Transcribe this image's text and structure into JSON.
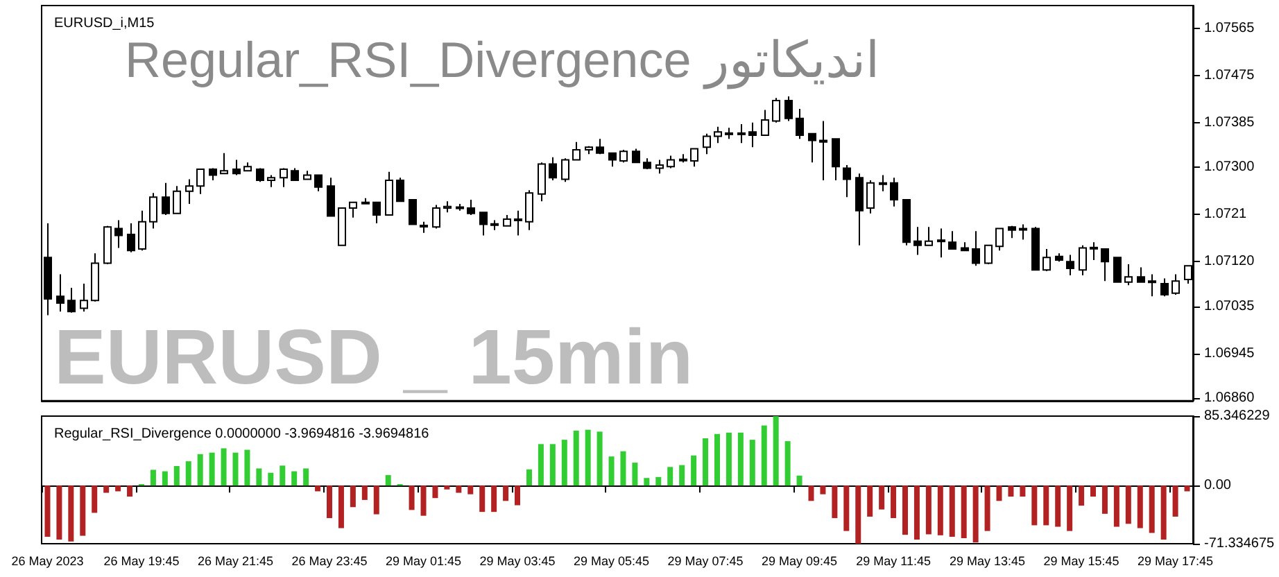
{
  "chart_data": [
    {
      "type": "candlestick",
      "title": "EURUSD_i,M15",
      "subtitle": "Regular_RSI_Divergence اندیکاتور",
      "annotations": [
        "EURUSD _ 15min"
      ],
      "color": "#000000",
      "tick_labels": "y",
      "categories": [
        null,
        null,
        null,
        null,
        null,
        null,
        null,
        null,
        null,
        null,
        null,
        null,
        null,
        null,
        null,
        null,
        null,
        null,
        null,
        null,
        null,
        null,
        null,
        null,
        null,
        null,
        null,
        null,
        null,
        null,
        null,
        null,
        null,
        null,
        null,
        null,
        null,
        null,
        null,
        null,
        null,
        null,
        null,
        null,
        null,
        null,
        null,
        null,
        null,
        null,
        null,
        null,
        null,
        null,
        null,
        null,
        null,
        null,
        null,
        null,
        null,
        null,
        null,
        null,
        null,
        null,
        null,
        null,
        null,
        null,
        null,
        null,
        null,
        null,
        null,
        null,
        null,
        null,
        null,
        null,
        null,
        null,
        null,
        null,
        null,
        null,
        null,
        null,
        null,
        null,
        null,
        null,
        null,
        null,
        null,
        null,
        null,
        null
      ],
      "ohlc": [
        [
          1.07128,
          1.07193,
          1.07018,
          1.07049
        ],
        [
          1.07054,
          1.07096,
          1.07025,
          1.07041
        ],
        [
          1.07046,
          1.0707,
          1.07023,
          1.07025
        ],
        [
          1.07031,
          1.07078,
          1.07025,
          1.07046
        ],
        [
          1.07046,
          1.07136,
          1.07044,
          1.07117
        ],
        [
          1.07117,
          1.07188,
          1.07115,
          1.07186
        ],
        [
          1.07183,
          1.07199,
          1.07146,
          1.0717
        ],
        [
          1.07172,
          1.07193,
          1.07138,
          1.07141
        ],
        [
          1.07144,
          1.07217,
          1.07141,
          1.07196
        ],
        [
          1.07196,
          1.07251,
          1.07183,
          1.07243
        ],
        [
          1.07243,
          1.0727,
          1.07209,
          1.07212
        ],
        [
          1.07212,
          1.07264,
          1.07212,
          1.07254
        ],
        [
          1.07254,
          1.07277,
          1.0723,
          1.07264
        ],
        [
          1.07264,
          1.07296,
          1.07249,
          1.07296
        ],
        [
          1.07296,
          1.07298,
          1.07275,
          1.07285
        ],
        [
          1.07288,
          1.07327,
          1.07288,
          1.07293
        ],
        [
          1.07296,
          1.07314,
          1.07285,
          1.07288
        ],
        [
          1.07293,
          1.07309,
          1.07293,
          1.07301
        ],
        [
          1.07296,
          1.07298,
          1.07272,
          1.07275
        ],
        [
          1.07275,
          1.07285,
          1.07262,
          1.0728
        ],
        [
          1.0728,
          1.07298,
          1.07262,
          1.07296
        ],
        [
          1.07293,
          1.07298,
          1.07275,
          1.07275
        ],
        [
          1.07277,
          1.07293,
          1.07277,
          1.07285
        ],
        [
          1.07285,
          1.07285,
          1.07254,
          1.07262
        ],
        [
          1.07264,
          1.0728,
          1.07207,
          1.07207
        ],
        [
          1.07151,
          1.07222,
          1.07151,
          1.07222
        ],
        [
          1.07222,
          1.07233,
          1.07204,
          1.07233
        ],
        [
          1.07231,
          1.07241,
          1.07231,
          1.07233
        ],
        [
          1.07233,
          1.07233,
          1.07193,
          1.07209
        ],
        [
          1.07209,
          1.07291,
          1.07209,
          1.07275
        ],
        [
          1.07275,
          1.0728,
          1.07235,
          1.07235
        ],
        [
          1.07238,
          1.07238,
          1.07191,
          1.07191
        ],
        [
          1.07189,
          1.07196,
          1.07175,
          1.07187
        ],
        [
          1.07186,
          1.07228,
          1.07183,
          1.07222
        ],
        [
          1.07222,
          1.07235,
          1.07214,
          1.07225
        ],
        [
          1.07222,
          1.0723,
          1.07217,
          1.07224
        ],
        [
          1.07222,
          1.07238,
          1.07209,
          1.07212
        ],
        [
          1.07214,
          1.07214,
          1.0717,
          1.07191
        ],
        [
          1.07192,
          1.07199,
          1.0718,
          1.07191
        ],
        [
          1.07188,
          1.07209,
          1.07188,
          1.07201
        ],
        [
          1.07199,
          1.07217,
          1.0717,
          1.07201
        ],
        [
          1.07196,
          1.07256,
          1.0718,
          1.07251
        ],
        [
          1.07249,
          1.07309,
          1.07235,
          1.07306
        ],
        [
          1.07306,
          1.07319,
          1.07275,
          1.0728
        ],
        [
          1.07277,
          1.07317,
          1.07272,
          1.07314
        ],
        [
          1.07314,
          1.07348,
          1.07314,
          1.07333
        ],
        [
          1.07333,
          1.0734,
          1.07325,
          1.07338
        ],
        [
          1.07338,
          1.07354,
          1.07325,
          1.07327
        ],
        [
          1.07327,
          1.07327,
          1.07301,
          1.07314
        ],
        [
          1.07312,
          1.07333,
          1.07309,
          1.0733
        ],
        [
          1.0733,
          1.07335,
          1.07309,
          1.07309
        ],
        [
          1.07309,
          1.07317,
          1.07296,
          1.07298
        ],
        [
          1.07298,
          1.07314,
          1.07288,
          1.07304
        ],
        [
          1.07301,
          1.07322,
          1.07298,
          1.07314
        ],
        [
          1.07314,
          1.07325,
          1.07309,
          1.07315
        ],
        [
          1.07312,
          1.07335,
          1.07301,
          1.07335
        ],
        [
          1.07338,
          1.07364,
          1.07325,
          1.07359
        ],
        [
          1.07359,
          1.07377,
          1.07346,
          1.07367
        ],
        [
          1.07364,
          1.07375,
          1.07354,
          1.07365
        ],
        [
          1.07364,
          1.07382,
          1.07346,
          1.07365
        ],
        [
          1.07367,
          1.07385,
          1.07338,
          1.07361
        ],
        [
          1.07361,
          1.07409,
          1.07361,
          1.0739
        ],
        [
          1.07388,
          1.07432,
          1.07385,
          1.07427
        ],
        [
          1.07427,
          1.07435,
          1.07388,
          1.07393
        ],
        [
          1.07393,
          1.07411,
          1.07354,
          1.07361
        ],
        [
          1.07364,
          1.07364,
          1.07309,
          1.07351
        ],
        [
          1.07351,
          1.07388,
          1.07275,
          1.07348
        ],
        [
          1.07354,
          1.07354,
          1.07275,
          1.07301
        ],
        [
          1.07298,
          1.07304,
          1.07243,
          1.07277
        ],
        [
          1.0728,
          1.07288,
          1.07151,
          1.07217
        ],
        [
          1.07222,
          1.07275,
          1.07212,
          1.0727
        ],
        [
          1.07268,
          1.07285,
          1.07254,
          1.0727
        ],
        [
          1.0727,
          1.0728,
          1.07225,
          1.07238
        ],
        [
          1.07238,
          1.07238,
          1.07151,
          1.07157
        ],
        [
          1.07159,
          1.07186,
          1.07133,
          1.07151
        ],
        [
          1.07151,
          1.07186,
          1.07151,
          1.07159
        ],
        [
          1.07161,
          1.07183,
          1.07128,
          1.07159
        ],
        [
          1.07157,
          1.07178,
          1.07144,
          1.07144
        ],
        [
          1.07146,
          1.07157,
          1.07141,
          1.07141
        ],
        [
          1.07144,
          1.07178,
          1.07112,
          1.07117
        ],
        [
          1.07117,
          1.07151,
          1.07115,
          1.07151
        ],
        [
          1.07149,
          1.07183,
          1.07141,
          1.07183
        ],
        [
          1.07186,
          1.07188,
          1.07165,
          1.0718
        ],
        [
          1.07183,
          1.07191,
          1.07162,
          1.07182
        ],
        [
          1.07183,
          1.07186,
          1.07104,
          1.07104
        ],
        [
          1.07104,
          1.07144,
          1.07102,
          1.07128
        ],
        [
          1.0713,
          1.07136,
          1.0712,
          1.07123
        ],
        [
          1.0712,
          1.07133,
          1.07094,
          1.07107
        ],
        [
          1.07104,
          1.07151,
          1.07094,
          1.07146
        ],
        [
          1.07146,
          1.07157,
          1.07123,
          1.07147
        ],
        [
          1.07144,
          1.07144,
          1.07083,
          1.0712
        ],
        [
          1.07128,
          1.07128,
          1.07081,
          1.07081
        ],
        [
          1.07081,
          1.07115,
          1.07075,
          1.07091
        ],
        [
          1.07091,
          1.07109,
          1.07081,
          1.07081
        ],
        [
          1.07083,
          1.07096,
          1.07054,
          1.07082
        ],
        [
          1.07078,
          1.07088,
          1.07054,
          1.07057
        ],
        [
          1.0706,
          1.07096,
          1.07057,
          1.07083
        ],
        [
          1.07086,
          1.07112,
          1.07078,
          1.07112
        ]
      ],
      "ylim": [
        1.06855,
        1.07608
      ],
      "yticks": [
        {
          "value": 1.0686,
          "label": "1.06860"
        },
        1.06945,
        1.07035,
        {
          "value": 1.0712,
          "label": "1.07120"
        },
        1.0721,
        {
          "value": 1.073,
          "label": "1.07300"
        },
        1.07385,
        1.07475,
        1.07565
      ]
    },
    {
      "type": "bar",
      "title": "Regular_RSI_Divergence 0.0000000 -3.9694816 -3.9694816",
      "categories": [
        "26 May 2023",
        null,
        null,
        null,
        null,
        null,
        null,
        null,
        "26 May 19:45",
        null,
        null,
        null,
        null,
        null,
        null,
        null,
        "26 May 21:45",
        null,
        null,
        null,
        null,
        null,
        null,
        null,
        "26 May 23:45",
        null,
        null,
        null,
        null,
        null,
        null,
        null,
        "29 May 01:45",
        null,
        null,
        null,
        null,
        null,
        null,
        null,
        "29 May 03:45",
        null,
        null,
        null,
        null,
        null,
        null,
        null,
        "29 May 05:45",
        null,
        null,
        null,
        null,
        null,
        null,
        null,
        "29 May 07:45",
        null,
        null,
        null,
        null,
        null,
        null,
        null,
        "29 May 09:45",
        null,
        null,
        null,
        null,
        null,
        null,
        null,
        "29 May 11:45",
        null,
        null,
        null,
        null,
        null,
        null,
        null,
        "29 May 13:45",
        null,
        null,
        null,
        null,
        null,
        null,
        null,
        "29 May 15:45",
        null,
        null,
        null,
        null,
        null,
        null,
        null,
        "29 May 17:45",
        null
      ],
      "values": [
        -62.8,
        -66.3,
        -68.6,
        -61.6,
        -33.4,
        -8.8,
        -7.0,
        -13.5,
        1.8,
        19.4,
        17.6,
        24.1,
        29.9,
        38.7,
        40.5,
        45.8,
        40.5,
        44.0,
        21.1,
        15.8,
        24.6,
        17.6,
        21.1,
        -7.0,
        -39.9,
        -52.2,
        -26.4,
        -17.6,
        -35.2,
        12.9,
        1.8,
        -29.9,
        -37.0,
        -15.3,
        -4.7,
        -8.8,
        -10.6,
        -32.3,
        -32.3,
        -18.8,
        -24.1,
        19.9,
        51.0,
        51.0,
        56.3,
        67.5,
        68.6,
        66.3,
        35.8,
        42.2,
        28.2,
        9.4,
        10.6,
        22.9,
        25.2,
        37.0,
        58.1,
        63.4,
        65.1,
        65.1,
        56.3,
        73.9,
        85.346229,
        54.6,
        12.3,
        -18.8,
        -10.6,
        -39.9,
        -55.7,
        -71.334675,
        -38.1,
        -29.3,
        -39.9,
        -60.4,
        -66.3,
        -59.8,
        -61.0,
        -62.8,
        -64.5,
        -69.8,
        -55.7,
        -18.8,
        -13.5,
        -13.5,
        -48.7,
        -48.7,
        -50.5,
        -55.7,
        -24.6,
        -13.5,
        -34.6,
        -50.5,
        -46.9,
        -52.2,
        -58.1,
        -66.3,
        -38.1,
        -7.0
      ],
      "colors": [
        "#b22222",
        "#b22222",
        "#b22222",
        "#b22222",
        "#b22222",
        "#b22222",
        "#b22222",
        "#b22222",
        "#32cd32",
        "#32cd32",
        "#32cd32",
        "#32cd32",
        "#32cd32",
        "#32cd32",
        "#32cd32",
        "#32cd32",
        "#32cd32",
        "#32cd32",
        "#32cd32",
        "#32cd32",
        "#32cd32",
        "#32cd32",
        "#32cd32",
        "#b22222",
        "#b22222",
        "#b22222",
        "#b22222",
        "#b22222",
        "#b22222",
        "#32cd32",
        "#32cd32",
        "#b22222",
        "#b22222",
        "#b22222",
        "#b22222",
        "#b22222",
        "#b22222",
        "#b22222",
        "#b22222",
        "#b22222",
        "#b22222",
        "#32cd32",
        "#32cd32",
        "#32cd32",
        "#32cd32",
        "#32cd32",
        "#32cd32",
        "#32cd32",
        "#32cd32",
        "#32cd32",
        "#32cd32",
        "#32cd32",
        "#32cd32",
        "#32cd32",
        "#32cd32",
        "#32cd32",
        "#32cd32",
        "#32cd32",
        "#32cd32",
        "#32cd32",
        "#32cd32",
        "#32cd32",
        "#32cd32",
        "#32cd32",
        "#32cd32",
        "#b22222",
        "#b22222",
        "#b22222",
        "#b22222",
        "#b22222",
        "#b22222",
        "#b22222",
        "#b22222",
        "#b22222",
        "#b22222",
        "#b22222",
        "#b22222",
        "#b22222",
        "#b22222",
        "#b22222",
        "#b22222",
        "#b22222",
        "#b22222",
        "#b22222",
        "#b22222",
        "#b22222",
        "#b22222",
        "#b22222",
        "#b22222",
        "#b22222",
        "#b22222",
        "#b22222",
        "#b22222",
        "#b22222",
        "#b22222",
        "#b22222",
        "#b22222",
        "#b22222"
      ],
      "ylim": [
        -71.334675,
        85.346229
      ],
      "yticks": [
        {
          "value": -71.334675,
          "label": "-71.334675"
        },
        {
          "value": 0,
          "label": "0.00"
        },
        {
          "value": 85.346229,
          "label": "85.346229"
        }
      ]
    }
  ]
}
